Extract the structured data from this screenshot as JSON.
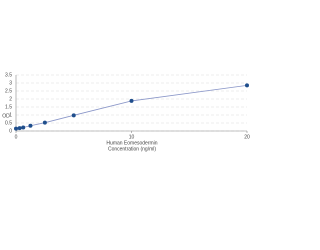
{
  "chart_data": {
    "type": "scatter",
    "xlabel": [
      "Human Eomesodermin",
      "Concentration (ng/ml)"
    ],
    "ylabel": "OD",
    "x": [
      0,
      0.313,
      0.625,
      1.25,
      2.5,
      5,
      10,
      20
    ],
    "values": [
      0.15,
      0.18,
      0.22,
      0.33,
      0.52,
      0.98,
      1.88,
      2.85
    ],
    "color": "#1f4e8c",
    "line_color": "#8a96c8",
    "xlim": [
      0,
      20
    ],
    "xticks": [
      0,
      10,
      20
    ],
    "ylim": [
      0,
      3.5
    ],
    "yticks": [
      0,
      0.5,
      1,
      1.5,
      2,
      2.5,
      3,
      3.5
    ],
    "grid": true
  }
}
